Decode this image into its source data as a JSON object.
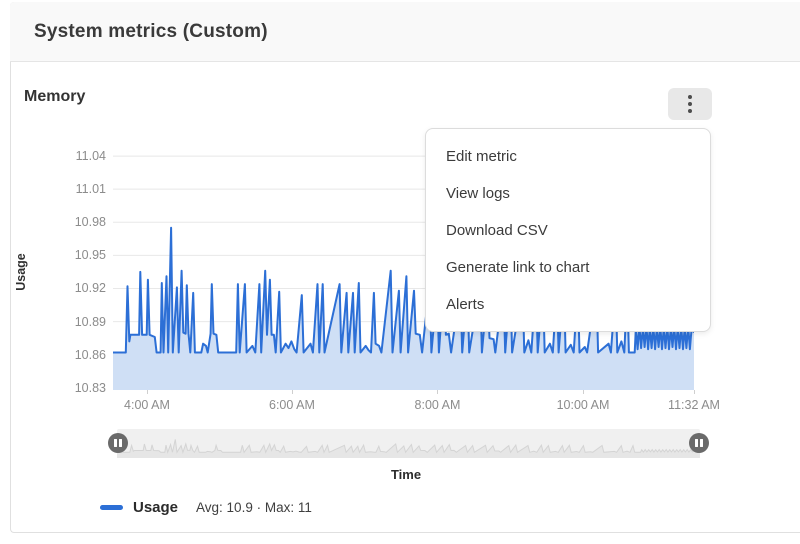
{
  "page": {
    "title": "System metrics (Custom)"
  },
  "chart_card": {
    "title": "Memory",
    "kebab_menu_icon": "vertical-ellipsis",
    "menu": {
      "items": [
        {
          "label": "Edit metric"
        },
        {
          "label": "View logs"
        },
        {
          "label": "Download CSV"
        },
        {
          "label": "Generate link to chart"
        },
        {
          "label": "Alerts"
        }
      ]
    },
    "legend": {
      "series_label": "Usage",
      "stats": "Avg: 10.9 · Max: 11"
    }
  },
  "colors": {
    "line": "#2c6fd6",
    "fill": "#cfdff5",
    "grid": "#e8e8e8",
    "mini_line": "#d4d4d4",
    "mini_fill": "#e6e6e6"
  },
  "chart_data": {
    "type": "area",
    "title": "Memory",
    "xlabel": "Time",
    "ylabel": "Usage",
    "legend_position": "bottom-left",
    "grid": true,
    "ylim": [
      10.828,
      11.0455
    ],
    "y_ticks": [
      "11.04",
      "11.01",
      "10.98",
      "10.95",
      "10.92",
      "10.89",
      "10.86",
      "10.83"
    ],
    "x_ticks": [
      {
        "label": "4:00 AM",
        "f": 0.0585
      },
      {
        "label": "6:00 AM",
        "f": 0.308
      },
      {
        "label": "8:00 AM",
        "f": 0.5585
      },
      {
        "label": "10:00 AM",
        "f": 0.809
      },
      {
        "label": "11:32 AM",
        "f": 1.0
      }
    ],
    "series": [
      {
        "name": "Usage",
        "avg": 10.9,
        "max": 11,
        "baseline": 10.862,
        "points": [
          [
            0,
            10.862
          ],
          [
            0.022,
            10.862
          ],
          [
            0.025,
            10.922
          ],
          [
            0.028,
            10.872
          ],
          [
            0.03,
            10.878
          ],
          [
            0.045,
            10.878
          ],
          [
            0.047,
            10.935
          ],
          [
            0.05,
            10.878
          ],
          [
            0.058,
            10.878
          ],
          [
            0.06,
            10.928
          ],
          [
            0.063,
            10.878
          ],
          [
            0.072,
            10.876
          ],
          [
            0.075,
            10.862
          ],
          [
            0.082,
            10.862
          ],
          [
            0.084,
            10.925
          ],
          [
            0.087,
            10.862
          ],
          [
            0.092,
            10.931
          ],
          [
            0.095,
            10.862
          ],
          [
            0.1,
            10.975
          ],
          [
            0.103,
            10.862
          ],
          [
            0.11,
            10.921
          ],
          [
            0.113,
            10.862
          ],
          [
            0.118,
            10.936
          ],
          [
            0.121,
            10.88
          ],
          [
            0.125,
            10.879
          ],
          [
            0.127,
            10.923
          ],
          [
            0.13,
            10.879
          ],
          [
            0.133,
            10.862
          ],
          [
            0.138,
            10.916
          ],
          [
            0.141,
            10.862
          ],
          [
            0.152,
            10.862
          ],
          [
            0.155,
            10.87
          ],
          [
            0.16,
            10.868
          ],
          [
            0.163,
            10.862
          ],
          [
            0.168,
            10.879
          ],
          [
            0.17,
            10.924
          ],
          [
            0.173,
            10.879
          ],
          [
            0.178,
            10.878
          ],
          [
            0.181,
            10.862
          ],
          [
            0.212,
            10.862
          ],
          [
            0.215,
            10.924
          ],
          [
            0.218,
            10.862
          ],
          [
            0.227,
            10.924
          ],
          [
            0.23,
            10.862
          ],
          [
            0.24,
            10.868
          ],
          [
            0.245,
            10.862
          ],
          [
            0.252,
            10.924
          ],
          [
            0.255,
            10.862
          ],
          [
            0.262,
            10.936
          ],
          [
            0.265,
            10.878
          ],
          [
            0.27,
            10.928
          ],
          [
            0.273,
            10.878
          ],
          [
            0.277,
            10.878
          ],
          [
            0.28,
            10.862
          ],
          [
            0.286,
            10.917
          ],
          [
            0.289,
            10.862
          ],
          [
            0.297,
            10.87
          ],
          [
            0.302,
            10.866
          ],
          [
            0.307,
            10.872
          ],
          [
            0.312,
            10.865
          ],
          [
            0.316,
            10.862
          ],
          [
            0.325,
            10.914
          ],
          [
            0.328,
            10.862
          ],
          [
            0.34,
            10.87
          ],
          [
            0.344,
            10.862
          ],
          [
            0.352,
            10.924
          ],
          [
            0.355,
            10.862
          ],
          [
            0.361,
            10.924
          ],
          [
            0.364,
            10.862
          ],
          [
            0.39,
            10.924
          ],
          [
            0.393,
            10.862
          ],
          [
            0.402,
            10.916
          ],
          [
            0.405,
            10.862
          ],
          [
            0.413,
            10.916
          ],
          [
            0.416,
            10.862
          ],
          [
            0.423,
            10.925
          ],
          [
            0.426,
            10.862
          ],
          [
            0.435,
            10.868
          ],
          [
            0.44,
            10.864
          ],
          [
            0.444,
            10.862
          ],
          [
            0.449,
            10.916
          ],
          [
            0.452,
            10.87
          ],
          [
            0.458,
            10.868
          ],
          [
            0.462,
            10.862
          ],
          [
            0.478,
            10.936
          ],
          [
            0.481,
            10.862
          ],
          [
            0.492,
            10.918
          ],
          [
            0.495,
            10.862
          ],
          [
            0.505,
            10.931
          ],
          [
            0.508,
            10.862
          ],
          [
            0.518,
            10.918
          ],
          [
            0.521,
            10.879
          ],
          [
            0.528,
            10.878
          ],
          [
            0.532,
            10.862
          ],
          [
            0.545,
            10.925
          ],
          [
            0.548,
            10.862
          ],
          [
            0.558,
            10.921
          ],
          [
            0.561,
            10.862
          ],
          [
            0.57,
            10.93
          ],
          [
            0.573,
            10.878
          ],
          [
            0.578,
            10.879
          ],
          [
            0.582,
            10.862
          ],
          [
            0.598,
            10.921
          ],
          [
            0.601,
            10.862
          ],
          [
            0.61,
            10.921
          ],
          [
            0.613,
            10.862
          ],
          [
            0.632,
            10.924
          ],
          [
            0.635,
            10.862
          ],
          [
            0.645,
            10.92
          ],
          [
            0.648,
            10.875
          ],
          [
            0.655,
            10.874
          ],
          [
            0.658,
            10.862
          ],
          [
            0.672,
            10.921
          ],
          [
            0.675,
            10.862
          ],
          [
            0.684,
            10.925
          ],
          [
            0.687,
            10.862
          ],
          [
            0.705,
            10.921
          ],
          [
            0.708,
            10.862
          ],
          [
            0.715,
            10.873
          ],
          [
            0.72,
            10.862
          ],
          [
            0.728,
            10.925
          ],
          [
            0.731,
            10.862
          ],
          [
            0.74,
            10.921
          ],
          [
            0.743,
            10.862
          ],
          [
            0.752,
            10.87
          ],
          [
            0.757,
            10.862
          ],
          [
            0.764,
            10.921
          ],
          [
            0.767,
            10.862
          ],
          [
            0.776,
            10.924
          ],
          [
            0.779,
            10.862
          ],
          [
            0.788,
            10.869
          ],
          [
            0.793,
            10.862
          ],
          [
            0.8,
            10.921
          ],
          [
            0.803,
            10.862
          ],
          [
            0.812,
            10.867
          ],
          [
            0.816,
            10.862
          ],
          [
            0.832,
            10.922
          ],
          [
            0.835,
            10.862
          ],
          [
            0.853,
            10.87
          ],
          [
            0.857,
            10.862
          ],
          [
            0.865,
            10.92
          ],
          [
            0.868,
            10.862
          ],
          [
            0.875,
            10.872
          ],
          [
            0.88,
            10.862
          ],
          [
            0.885,
            10.921
          ],
          [
            0.888,
            10.862
          ],
          [
            0.898,
            10.862
          ],
          [
            0.9,
            10.885
          ],
          [
            0.903,
            10.865
          ],
          [
            0.906,
            10.886
          ],
          [
            0.909,
            10.866
          ],
          [
            0.912,
            10.885
          ],
          [
            0.915,
            10.867
          ],
          [
            0.918,
            10.886
          ],
          [
            0.921,
            10.865
          ],
          [
            0.924,
            10.885
          ],
          [
            0.927,
            10.866
          ],
          [
            0.93,
            10.886
          ],
          [
            0.933,
            10.865
          ],
          [
            0.936,
            10.885
          ],
          [
            0.939,
            10.867
          ],
          [
            0.942,
            10.886
          ],
          [
            0.945,
            10.865
          ],
          [
            0.948,
            10.885
          ],
          [
            0.951,
            10.866
          ],
          [
            0.954,
            10.886
          ],
          [
            0.957,
            10.865
          ],
          [
            0.96,
            10.885
          ],
          [
            0.963,
            10.867
          ],
          [
            0.966,
            10.886
          ],
          [
            0.969,
            10.865
          ],
          [
            0.972,
            10.885
          ],
          [
            0.975,
            10.866
          ],
          [
            0.978,
            10.886
          ],
          [
            0.981,
            10.865
          ],
          [
            0.984,
            10.885
          ],
          [
            0.987,
            10.866
          ],
          [
            0.99,
            10.886
          ],
          [
            0.993,
            10.865
          ],
          [
            0.996,
            10.885
          ],
          [
            1,
            10.88
          ]
        ]
      }
    ]
  }
}
